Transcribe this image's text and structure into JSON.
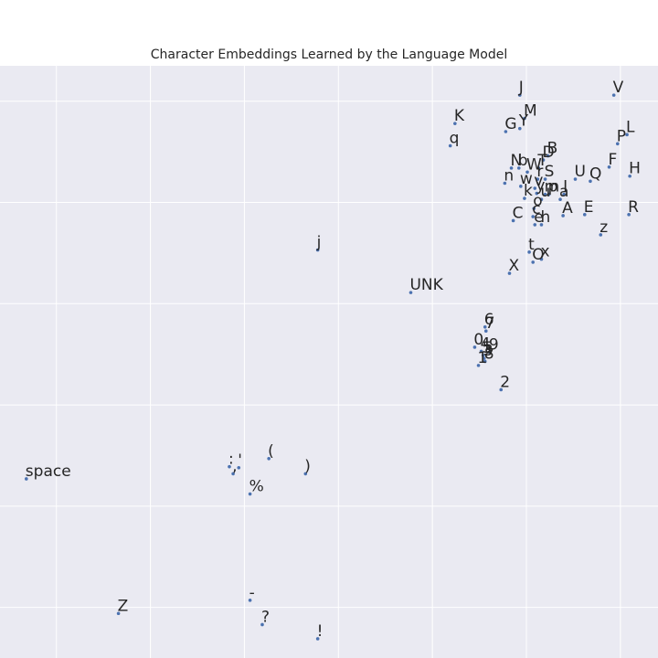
{
  "chart_data": {
    "type": "scatter",
    "title": "Character Embeddings Learned by the Language Model",
    "xlabel": "",
    "ylabel": "",
    "xlim": [
      -2.6,
      4.4
    ],
    "ylim": [
      -4.0,
      1.85
    ],
    "xticks": [
      -2,
      -1,
      0,
      1,
      2,
      3,
      4
    ],
    "yticks": [
      -3.5,
      -2.5,
      -1.5,
      -0.5,
      0.5,
      1.5
    ],
    "show_tick_labels": false,
    "grid": true,
    "colors": {
      "background": "#eaeaf2",
      "grid": "#ffffff",
      "point": "#4c72b0",
      "text": "#262626"
    },
    "points": [
      {
        "label": "J",
        "x": 2.93,
        "y": 1.56
      },
      {
        "label": "V",
        "x": 3.93,
        "y": 1.56
      },
      {
        "label": "M",
        "x": 2.98,
        "y": 1.33
      },
      {
        "label": "K",
        "x": 2.24,
        "y": 1.28
      },
      {
        "label": "G",
        "x": 2.78,
        "y": 1.2
      },
      {
        "label": "Y",
        "x": 2.93,
        "y": 1.23
      },
      {
        "label": "L",
        "x": 4.07,
        "y": 1.17
      },
      {
        "label": "P",
        "x": 3.97,
        "y": 1.08
      },
      {
        "label": "q",
        "x": 2.19,
        "y": 1.06
      },
      {
        "label": "B",
        "x": 3.23,
        "y": 0.96
      },
      {
        "label": "D",
        "x": 3.18,
        "y": 0.92
      },
      {
        "label": "F",
        "x": 3.88,
        "y": 0.85
      },
      {
        "label": "N",
        "x": 2.84,
        "y": 0.84
      },
      {
        "label": "b",
        "x": 2.92,
        "y": 0.84
      },
      {
        "label": "T",
        "x": 3.13,
        "y": 0.84
      },
      {
        "label": "W",
        "x": 3.01,
        "y": 0.8
      },
      {
        "label": "H",
        "x": 4.1,
        "y": 0.76
      },
      {
        "label": "r",
        "x": 3.12,
        "y": 0.73
      },
      {
        "label": "S",
        "x": 3.2,
        "y": 0.73
      },
      {
        "label": "U",
        "x": 3.52,
        "y": 0.73
      },
      {
        "label": "Q",
        "x": 3.68,
        "y": 0.71
      },
      {
        "label": "n",
        "x": 2.77,
        "y": 0.69
      },
      {
        "label": "w",
        "x": 2.94,
        "y": 0.66
      },
      {
        "label": "v",
        "x": 3.09,
        "y": 0.64
      },
      {
        "label": "y",
        "x": 3.11,
        "y": 0.59
      },
      {
        "label": "m",
        "x": 3.2,
        "y": 0.58
      },
      {
        "label": "p",
        "x": 3.24,
        "y": 0.58
      },
      {
        "label": "I",
        "x": 3.4,
        "y": 0.58
      },
      {
        "label": "k",
        "x": 2.98,
        "y": 0.54
      },
      {
        "label": "u",
        "x": 3.16,
        "y": 0.53
      },
      {
        "label": "a",
        "x": 3.36,
        "y": 0.53
      },
      {
        "label": "o",
        "x": 3.08,
        "y": 0.44
      },
      {
        "label": "A",
        "x": 3.39,
        "y": 0.37
      },
      {
        "label": "E",
        "x": 3.62,
        "y": 0.38
      },
      {
        "label": "R",
        "x": 4.09,
        "y": 0.38
      },
      {
        "label": "C",
        "x": 2.86,
        "y": 0.32
      },
      {
        "label": "c",
        "x": 3.07,
        "y": 0.36
      },
      {
        "label": "e",
        "x": 3.09,
        "y": 0.28
      },
      {
        "label": "h",
        "x": 3.16,
        "y": 0.28
      },
      {
        "label": "z",
        "x": 3.79,
        "y": 0.18
      },
      {
        "label": "j",
        "x": 0.78,
        "y": 0.03
      },
      {
        "label": "t",
        "x": 3.03,
        "y": 0.01
      },
      {
        "label": "x",
        "x": 3.16,
        "y": -0.06
      },
      {
        "label": "O",
        "x": 3.07,
        "y": -0.09
      },
      {
        "label": "X",
        "x": 2.82,
        "y": -0.2
      },
      {
        "label": "UNK",
        "x": 1.77,
        "y": -0.39
      },
      {
        "label": "6",
        "x": 2.56,
        "y": -0.73
      },
      {
        "label": "7",
        "x": 2.57,
        "y": -0.77
      },
      {
        "label": "0",
        "x": 2.45,
        "y": -0.93
      },
      {
        "label": "4",
        "x": 2.52,
        "y": -0.97
      },
      {
        "label": "9",
        "x": 2.61,
        "y": -0.98
      },
      {
        "label": "5",
        "x": 2.54,
        "y": -1.01
      },
      {
        "label": "3",
        "x": 2.55,
        "y": -1.04
      },
      {
        "label": "8",
        "x": 2.56,
        "y": -1.07
      },
      {
        "label": "1",
        "x": 2.49,
        "y": -1.11
      },
      {
        "label": "2",
        "x": 2.73,
        "y": -1.35
      },
      {
        "label": "(",
        "x": 0.26,
        "y": -2.03
      },
      {
        "label": ":",
        "x": -0.16,
        "y": -2.11
      },
      {
        "label": "'",
        "x": -0.06,
        "y": -2.12
      },
      {
        "label": ")",
        "x": 0.65,
        "y": -2.18
      },
      {
        "label": ",",
        "x": -0.12,
        "y": -2.18
      },
      {
        "label": "space",
        "x": -2.32,
        "y": -2.23
      },
      {
        "label": "%",
        "x": 0.06,
        "y": -2.38
      },
      {
        "label": "Z",
        "x": -1.34,
        "y": -3.56
      },
      {
        "label": "-",
        "x": 0.06,
        "y": -3.43
      },
      {
        "label": "?",
        "x": 0.19,
        "y": -3.67
      },
      {
        "label": "!",
        "x": 0.78,
        "y": -3.81
      }
    ]
  }
}
